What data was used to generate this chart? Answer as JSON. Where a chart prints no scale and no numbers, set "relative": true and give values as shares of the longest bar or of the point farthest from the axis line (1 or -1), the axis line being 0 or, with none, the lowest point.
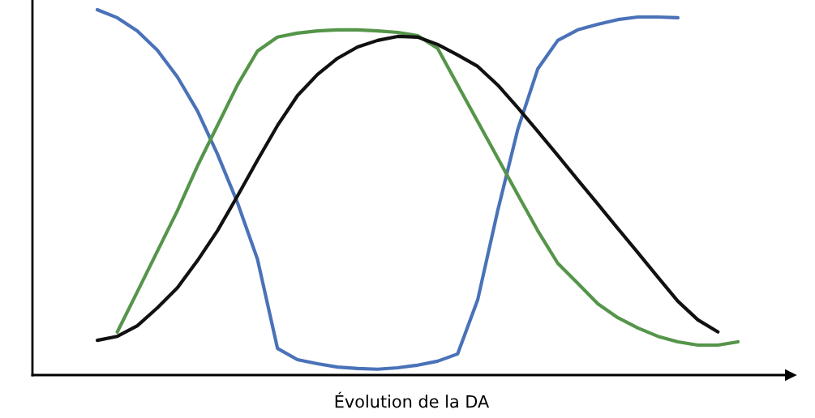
{
  "chart_data": {
    "type": "line",
    "relative": true,
    "xlabel": "Évolution de la DA",
    "grid": false,
    "marker": "none",
    "line_style": "solid",
    "categories": [
      null,
      null,
      null,
      null,
      null,
      null,
      null,
      null,
      null,
      null,
      null,
      null,
      null,
      null,
      null,
      null,
      null,
      null,
      null,
      null,
      null,
      null,
      null,
      null,
      null,
      null,
      null,
      null,
      null,
      null,
      null,
      null,
      null
    ],
    "series": [
      {
        "color": "#4a72b8",
        "values": [
          1.0,
          0.978,
          0.942,
          0.889,
          0.816,
          0.723,
          0.605,
          0.472,
          0.317,
          0.073,
          0.042,
          0.031,
          0.022,
          0.018,
          0.016,
          0.02,
          0.027,
          0.038,
          0.058,
          0.206,
          0.45,
          0.672,
          0.838,
          0.916,
          0.945,
          0.96,
          0.973,
          0.98,
          0.98,
          0.978,
          null,
          null,
          null
        ]
      },
      {
        "color": "#55954a",
        "values": [
          null,
          0.118,
          0.228,
          0.339,
          0.45,
          0.572,
          0.683,
          0.794,
          0.887,
          0.925,
          0.936,
          0.942,
          0.945,
          0.945,
          0.942,
          0.938,
          0.929,
          0.894,
          0.794,
          0.694,
          0.594,
          0.494,
          0.395,
          0.306,
          0.251,
          0.195,
          0.157,
          0.129,
          0.106,
          0.091,
          0.082,
          0.082,
          0.091
        ]
      },
      {
        "color": "#111111",
        "values": [
          0.095,
          0.106,
          0.135,
          0.184,
          0.239,
          0.313,
          0.395,
          0.49,
          0.588,
          0.683,
          0.765,
          0.823,
          0.867,
          0.898,
          0.916,
          0.927,
          0.925,
          0.905,
          0.876,
          0.845,
          0.794,
          0.732,
          0.667,
          0.601,
          0.534,
          0.468,
          0.401,
          0.335,
          0.268,
          0.202,
          0.151,
          0.118,
          null
        ]
      }
    ]
  }
}
